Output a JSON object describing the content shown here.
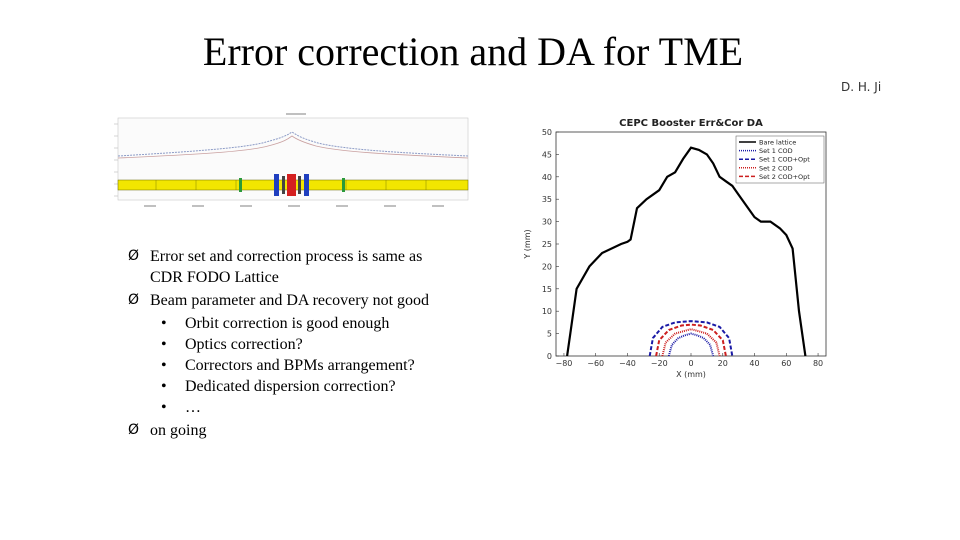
{
  "slide": {
    "title": "Error correction and DA for TME",
    "author": "D. H. Ji"
  },
  "bullets": [
    {
      "text": "Error set and correction process is same as",
      "text2": "CDR FODO Lattice",
      "marker": "Ø"
    },
    {
      "text": "Beam parameter and DA recovery not good",
      "marker": "Ø",
      "sub": [
        "Orbit correction is good enough",
        "Optics correction?",
        "Correctors and BPMs arrangement?",
        "Dedicated dispersion correction?",
        "…"
      ]
    },
    {
      "text": "on going",
      "marker": "Ø"
    }
  ],
  "sub_marker": "•",
  "colors": {
    "bare": "#000000",
    "set1": "#1a1aa6",
    "set2": "#cc1f1f",
    "lattice_curve": "#9aa8c8",
    "dipole": "#f2e600",
    "quad_blue": "#1f3fbf",
    "quad_red": "#d42020",
    "sext_green": "#2a9a3a"
  },
  "chart_data": [
    {
      "type": "line",
      "title": "CEPC Booster Err&Cor DA",
      "xlabel": "X (mm)",
      "ylabel": "Y (mm)",
      "xlim": [
        -85,
        85
      ],
      "ylim": [
        0,
        50
      ],
      "xticks": [
        -80,
        -60,
        -40,
        -20,
        0,
        20,
        40,
        60,
        80
      ],
      "yticks": [
        0,
        5,
        10,
        15,
        20,
        25,
        30,
        35,
        40,
        45,
        50
      ],
      "legend_position": "top-right",
      "series": [
        {
          "name": "Bare lattice",
          "color": "#000000",
          "dash": "solid",
          "x": [
            -78,
            -76,
            -72,
            -64,
            -56,
            -44,
            -40,
            -38,
            -34,
            -28,
            -24,
            -20,
            -15,
            -10,
            -5,
            0,
            5,
            10,
            14,
            18,
            22,
            26,
            30,
            36,
            40,
            44,
            50,
            56,
            60,
            64,
            66,
            68,
            72
          ],
          "y": [
            0,
            5,
            15,
            20,
            23,
            25,
            25.5,
            26,
            33,
            35,
            36,
            37,
            40,
            41,
            44,
            46.5,
            46,
            45,
            43,
            40,
            39,
            38,
            36,
            33,
            31,
            30,
            30,
            28.5,
            27,
            24,
            17,
            10,
            0
          ]
        },
        {
          "name": "Set 1 COD",
          "color": "#1a1aa6",
          "dash": "1,1",
          "x": [
            -14,
            -12,
            -8,
            -4,
            0,
            4,
            8,
            12,
            14
          ],
          "y": [
            0,
            2.5,
            4,
            4.6,
            5,
            4.6,
            4,
            2.5,
            0
          ]
        },
        {
          "name": "Set 1 COD+Opt",
          "color": "#1a1aa6",
          "dash": "4,2",
          "x": [
            -26,
            -24,
            -18,
            -10,
            0,
            10,
            18,
            24,
            26
          ],
          "y": [
            0,
            4,
            6.5,
            7.5,
            7.8,
            7.5,
            6.5,
            4,
            0
          ]
        },
        {
          "name": "Set 2 COD",
          "color": "#cc1f1f",
          "dash": "1,1",
          "x": [
            -18,
            -16,
            -10,
            -4,
            0,
            4,
            10,
            16,
            18
          ],
          "y": [
            0,
            3,
            5,
            5.6,
            6,
            5.6,
            5,
            3,
            0
          ]
        },
        {
          "name": "Set 2 COD+Opt",
          "color": "#cc1f1f",
          "dash": "4,2",
          "x": [
            -22,
            -20,
            -14,
            -6,
            0,
            6,
            14,
            20,
            22
          ],
          "y": [
            0,
            3.5,
            5.8,
            6.8,
            7,
            6.8,
            5.8,
            3.5,
            0
          ]
        }
      ]
    }
  ]
}
